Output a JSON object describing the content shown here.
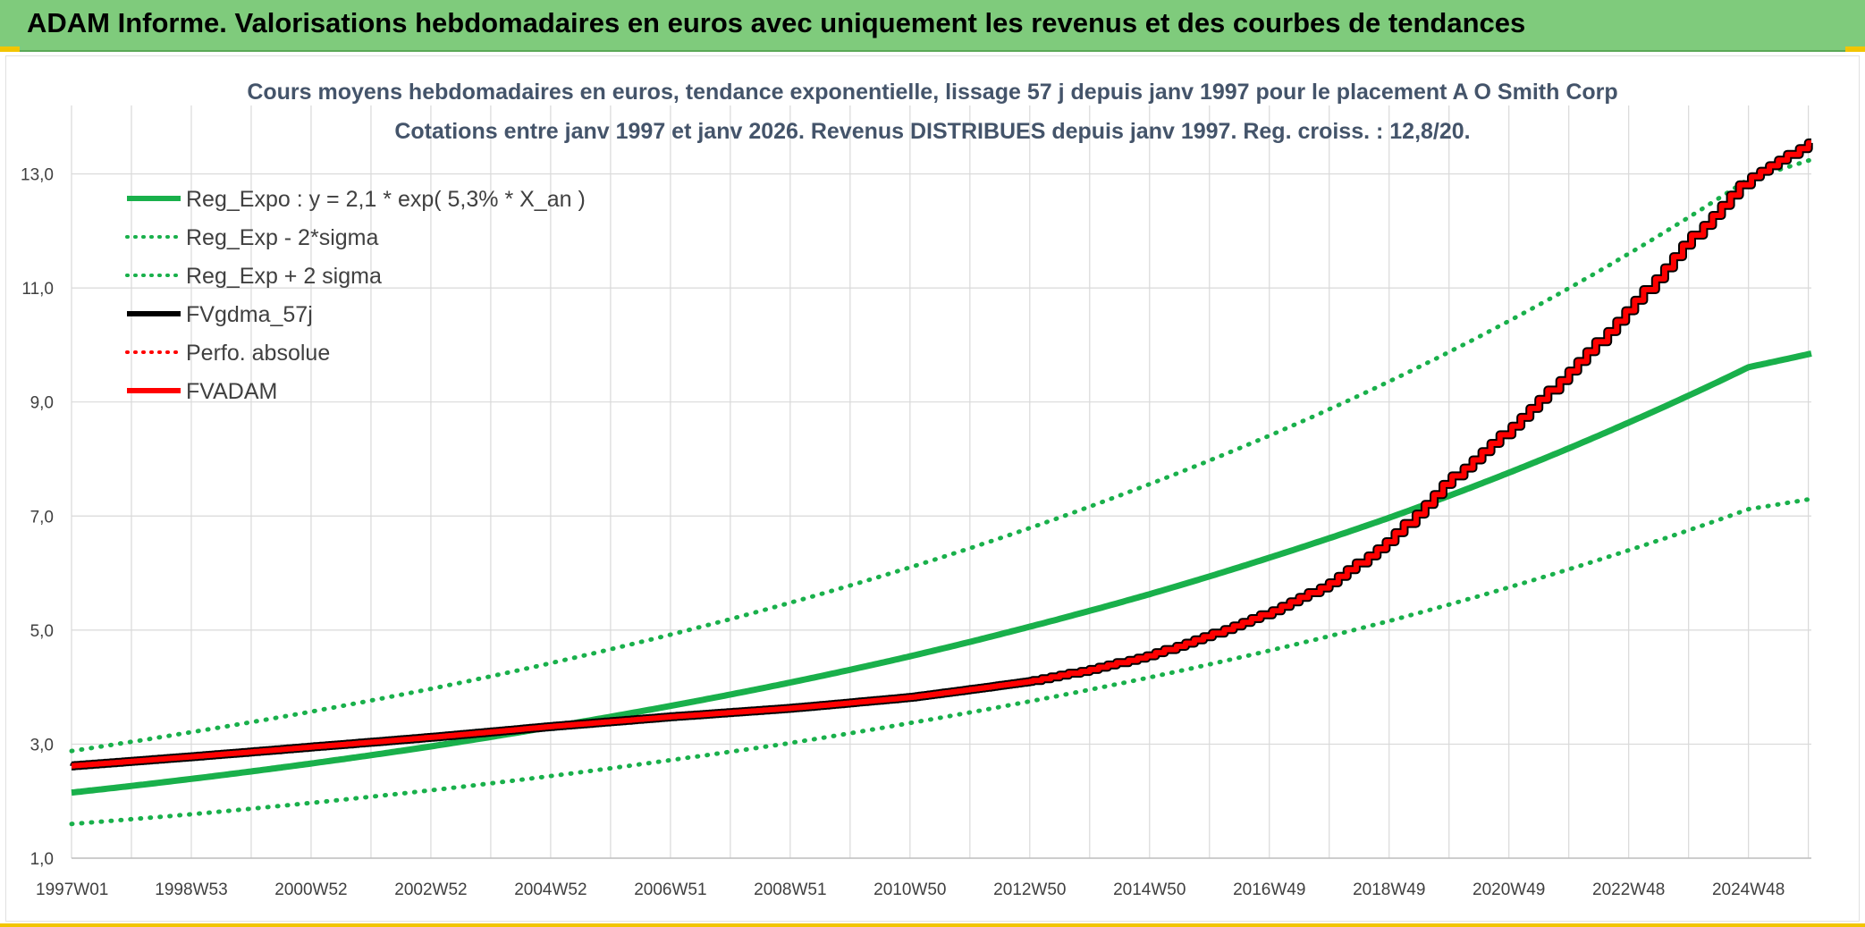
{
  "header": {
    "title": "ADAM Informe. Valorisations hebdomadaires en euros avec uniquement les revenus et des courbes de tendances"
  },
  "colors": {
    "header_bg": "#7fcb7c",
    "accent": "#f2c500",
    "reg_green": "#19b04b",
    "red": "#ff0000",
    "black": "#000000"
  },
  "chart_data": {
    "type": "line",
    "title": "Cours moyens hebdomadaires en euros, tendance exponentielle, lissage 57 j depuis janv 1997 pour le placement A O Smith Corp",
    "subtitle": "Cotations entre janv 1997 et janv 2026. Revenus DISTRIBUES depuis janv 1997. Reg. croiss. : 12,8/20.",
    "xlabel": "",
    "ylabel": "",
    "xlim": [
      1997.0,
      2026.05
    ],
    "ylim": [
      1.0,
      14.2
    ],
    "yticks": [
      1,
      3,
      5,
      7,
      9,
      11,
      13
    ],
    "ytick_labels": [
      "1,0",
      "3,0",
      "5,0",
      "7,0",
      "9,0",
      "11,0",
      "13,0"
    ],
    "xtick_labels": [
      "1997W01",
      "1998W53",
      "2000W52",
      "2002W52",
      "2004W52",
      "2006W51",
      "2008W51",
      "2010W50",
      "2012W50",
      "2014W50",
      "2016W49",
      "2018W49",
      "2020W49",
      "2022W48",
      "2024W48"
    ],
    "xtick_years": [
      1997.0,
      1999.0,
      2001.0,
      2003.0,
      2005.0,
      2007.0,
      2009.0,
      2011.0,
      2013.0,
      2015.0,
      2017.0,
      2019.0,
      2021.0,
      2023.0,
      2025.0
    ],
    "grid": true,
    "legend": [
      {
        "label": "Reg_Expo : y = 2,1 * exp( 5,3% *  X_an )",
        "style": "solid",
        "color": "#19b04b"
      },
      {
        "label": "Reg_Exp - 2*sigma",
        "style": "dotted",
        "color": "#19b04b"
      },
      {
        "label": "Reg_Exp + 2 sigma",
        "style": "dotted",
        "color": "#19b04b"
      },
      {
        "label": "FVgdma_57j",
        "style": "solid",
        "color": "#000000"
      },
      {
        "label": "Perfo. absolue",
        "style": "dotted",
        "color": "#ff0000"
      },
      {
        "label": "FVADAM",
        "style": "solid",
        "color": "#ff0000"
      }
    ],
    "series": [
      {
        "name": "Reg_Expo",
        "x": [
          1997,
          1999,
          2001,
          2003,
          2005,
          2007,
          2009,
          2011,
          2013,
          2015,
          2017,
          2019,
          2021,
          2023,
          2025,
          2026.05
        ],
        "values": [
          2.15,
          2.39,
          2.66,
          2.96,
          3.3,
          3.67,
          4.08,
          4.54,
          5.06,
          5.63,
          6.27,
          6.97,
          7.76,
          8.64,
          9.61,
          9.85
        ]
      },
      {
        "name": "Reg_Exp - 2*sigma",
        "x": [
          1997,
          1999,
          2001,
          2003,
          2005,
          2007,
          2009,
          2011,
          2013,
          2015,
          2017,
          2019,
          2021,
          2023,
          2025,
          2026.05
        ],
        "values": [
          1.6,
          1.77,
          1.97,
          2.19,
          2.44,
          2.72,
          3.02,
          3.37,
          3.75,
          4.17,
          4.64,
          5.16,
          5.75,
          6.4,
          7.12,
          7.3
        ]
      },
      {
        "name": "Reg_Exp + 2 sigma",
        "x": [
          1997,
          1999,
          2001,
          2003,
          2005,
          2007,
          2009,
          2011,
          2013,
          2015,
          2017,
          2019,
          2021,
          2023,
          2025,
          2026.05
        ],
        "values": [
          2.88,
          3.21,
          3.57,
          3.97,
          4.42,
          4.92,
          5.48,
          6.1,
          6.79,
          7.56,
          8.41,
          9.36,
          10.42,
          11.6,
          12.91,
          13.25
        ]
      },
      {
        "name": "FVgdma_57j",
        "x": [
          1997,
          1999,
          2001,
          2003,
          2005,
          2007,
          2009,
          2011,
          2013,
          2014,
          2015,
          2016,
          2017,
          2018,
          2019,
          2020,
          2021,
          2022,
          2023,
          2024,
          2025,
          2026.05
        ],
        "values": [
          2.62,
          2.78,
          2.95,
          3.12,
          3.31,
          3.48,
          3.63,
          3.82,
          4.1,
          4.3,
          4.55,
          4.9,
          5.3,
          5.8,
          6.55,
          7.6,
          8.5,
          9.5,
          10.6,
          11.8,
          12.9,
          13.55
        ]
      },
      {
        "name": "FVADAM",
        "x": [
          1997,
          1999,
          2001,
          2003,
          2005,
          2007,
          2009,
          2011,
          2013,
          2014,
          2015,
          2016,
          2017,
          2018,
          2019,
          2020,
          2021,
          2022,
          2023,
          2024,
          2025,
          2026.05
        ],
        "values": [
          2.62,
          2.78,
          2.95,
          3.12,
          3.31,
          3.48,
          3.63,
          3.82,
          4.1,
          4.3,
          4.55,
          4.9,
          5.3,
          5.8,
          6.55,
          7.6,
          8.5,
          9.5,
          10.6,
          11.8,
          12.9,
          13.55
        ]
      }
    ]
  }
}
